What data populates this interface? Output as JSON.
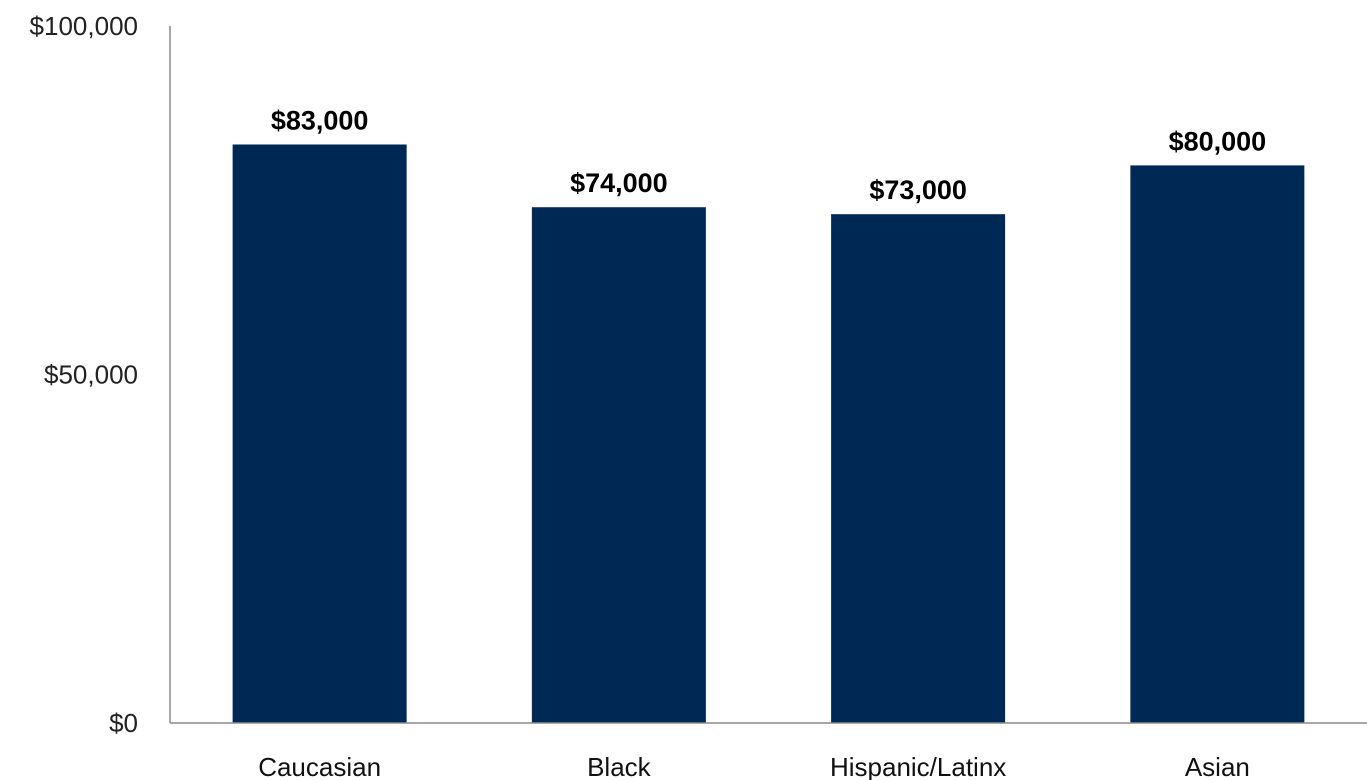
{
  "chart_data": {
    "type": "bar",
    "title": "",
    "xlabel": "",
    "ylabel": "",
    "categories": [
      "Caucasian",
      "Black",
      "Hispanic/Latinx",
      "Asian"
    ],
    "values": [
      83000,
      74000,
      73000,
      80000
    ],
    "data_labels": [
      "$83,000",
      "$74,000",
      "$73,000",
      "$80,000"
    ],
    "ylim": [
      0,
      100000
    ],
    "yticks": [
      0,
      50000,
      100000
    ],
    "ytick_labels": [
      "$0",
      "$50,000",
      "$100,000"
    ],
    "bar_color": "#002855",
    "axis_color": "#8c8c8c",
    "grid": false,
    "legend": "none"
  }
}
